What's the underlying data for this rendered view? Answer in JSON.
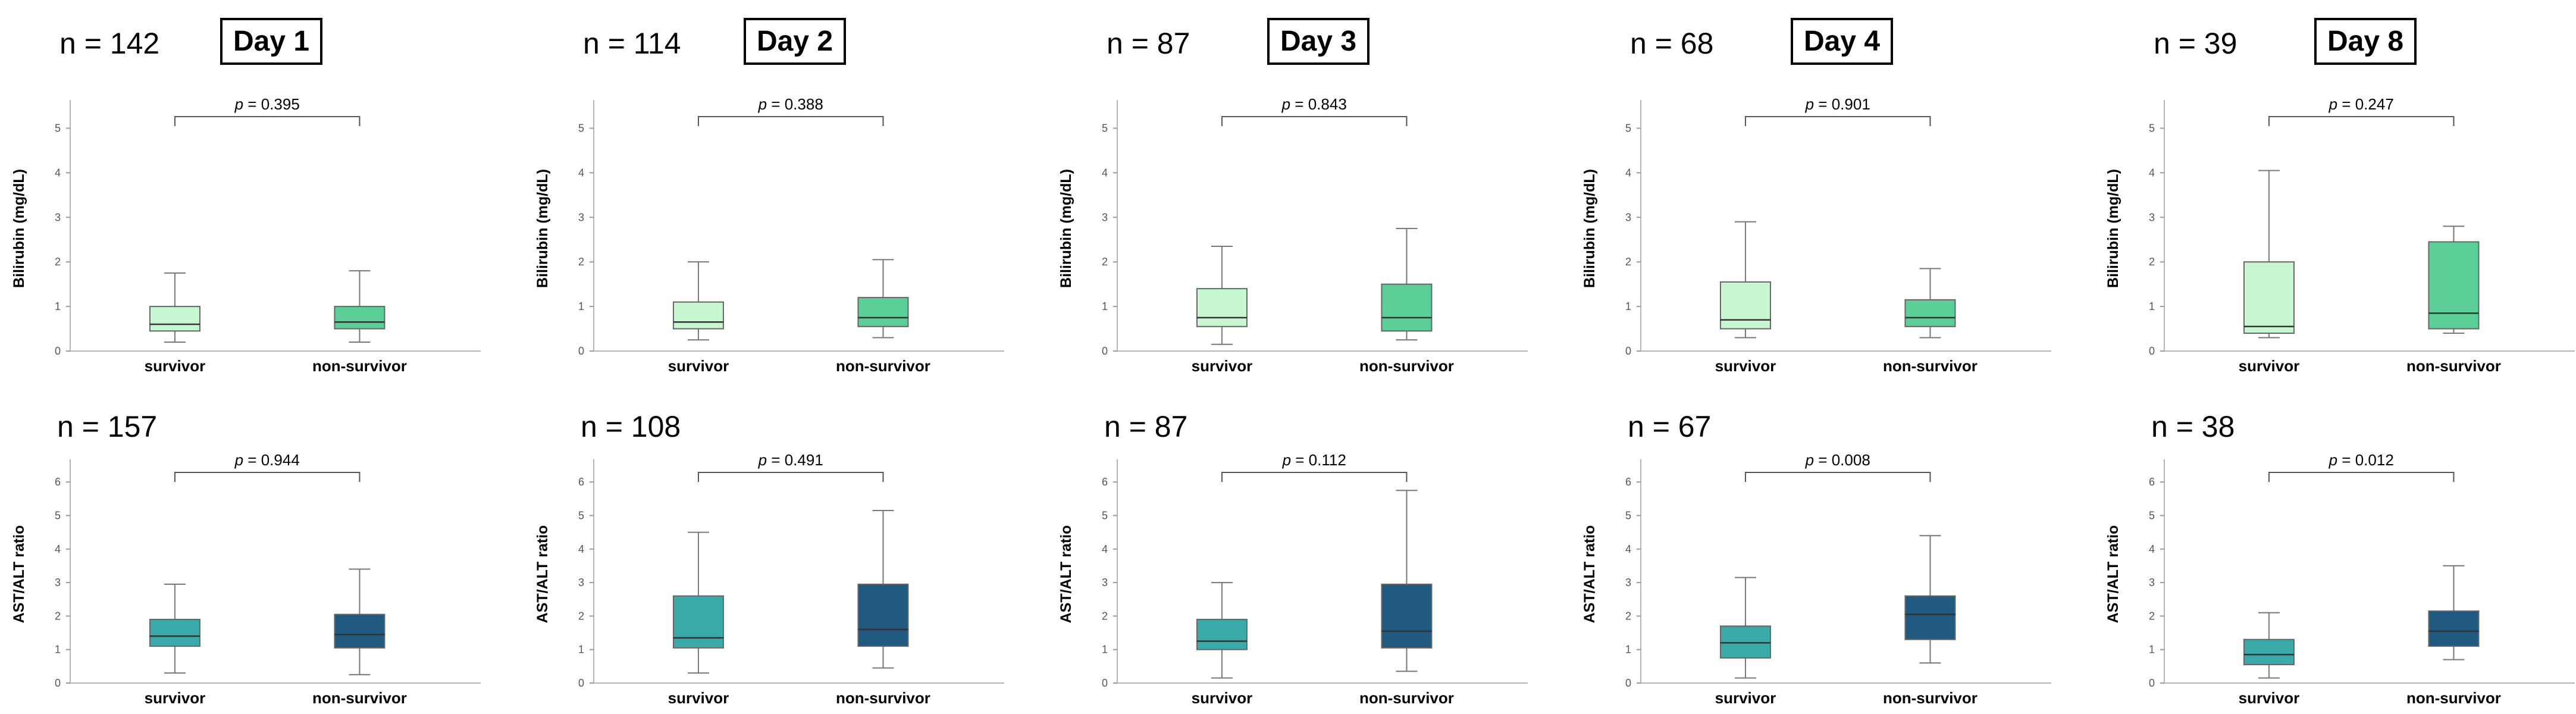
{
  "chart_data": [
    {
      "type": "box",
      "panel": "Bilirubin Day 1",
      "day_label": "Day 1",
      "n_label": "n = 142",
      "ylabel": "Bilirubin (mg/dL)",
      "ylim": [
        0,
        5.5
      ],
      "yticks": [
        0,
        1,
        2,
        3,
        4,
        5
      ],
      "p_label": "p = 0.395",
      "categories": [
        "survivor",
        "non-survivor"
      ],
      "boxes": [
        {
          "min": 0.2,
          "q1": 0.45,
          "median": 0.6,
          "q3": 1.0,
          "max": 1.75,
          "color": "#c6f7d0"
        },
        {
          "min": 0.2,
          "q1": 0.5,
          "median": 0.65,
          "q3": 1.0,
          "max": 1.8,
          "color": "#5ccf98"
        }
      ]
    },
    {
      "type": "box",
      "panel": "Bilirubin Day 2",
      "day_label": "Day 2",
      "n_label": "n = 114",
      "ylabel": "Bilirubin (mg/dL)",
      "ylim": [
        0,
        5.5
      ],
      "yticks": [
        0,
        1,
        2,
        3,
        4,
        5
      ],
      "p_label": "p = 0.388",
      "categories": [
        "survivor",
        "non-survivor"
      ],
      "boxes": [
        {
          "min": 0.25,
          "q1": 0.5,
          "median": 0.65,
          "q3": 1.1,
          "max": 2.0,
          "color": "#c6f7d0"
        },
        {
          "min": 0.3,
          "q1": 0.55,
          "median": 0.75,
          "q3": 1.2,
          "max": 2.05,
          "color": "#5ccf98"
        }
      ]
    },
    {
      "type": "box",
      "panel": "Bilirubin Day 3",
      "day_label": "Day 3",
      "n_label": "n = 87",
      "ylabel": "Bilirubin (mg/dL)",
      "ylim": [
        0,
        5.5
      ],
      "yticks": [
        0,
        1,
        2,
        3,
        4,
        5
      ],
      "p_label": "p = 0.843",
      "categories": [
        "survivor",
        "non-survivor"
      ],
      "boxes": [
        {
          "min": 0.15,
          "q1": 0.55,
          "median": 0.75,
          "q3": 1.4,
          "max": 2.35,
          "color": "#c6f7d0"
        },
        {
          "min": 0.25,
          "q1": 0.45,
          "median": 0.75,
          "q3": 1.5,
          "max": 2.75,
          "color": "#5ccf98"
        }
      ]
    },
    {
      "type": "box",
      "panel": "Bilirubin Day 4",
      "day_label": "Day 4",
      "n_label": "n = 68",
      "ylabel": "Bilirubin (mg/dL)",
      "ylim": [
        0,
        5.5
      ],
      "yticks": [
        0,
        1,
        2,
        3,
        4,
        5
      ],
      "p_label": "p = 0.901",
      "categories": [
        "survivor",
        "non-survivor"
      ],
      "boxes": [
        {
          "min": 0.3,
          "q1": 0.5,
          "median": 0.7,
          "q3": 1.55,
          "max": 2.9,
          "color": "#c6f7d0"
        },
        {
          "min": 0.3,
          "q1": 0.55,
          "median": 0.75,
          "q3": 1.15,
          "max": 1.85,
          "color": "#5ccf98"
        }
      ]
    },
    {
      "type": "box",
      "panel": "Bilirubin Day 8",
      "day_label": "Day 8",
      "n_label": "n = 39",
      "ylabel": "Bilirubin (mg/dL)",
      "ylim": [
        0,
        5.5
      ],
      "yticks": [
        0,
        1,
        2,
        3,
        4,
        5
      ],
      "p_label": "p = 0.247",
      "categories": [
        "survivor",
        "non-survivor"
      ],
      "boxes": [
        {
          "min": 0.3,
          "q1": 0.4,
          "median": 0.55,
          "q3": 2.0,
          "max": 4.05,
          "color": "#c6f7d0"
        },
        {
          "min": 0.4,
          "q1": 0.5,
          "median": 0.85,
          "q3": 2.45,
          "max": 2.8,
          "color": "#5ccf98"
        }
      ]
    },
    {
      "type": "box",
      "panel": "AST/ALT Day 1",
      "n_label": "n = 157",
      "ylabel": "AST/ALT ratio",
      "ylim": [
        0,
        6.5
      ],
      "yticks": [
        0,
        1,
        2,
        3,
        4,
        5,
        6
      ],
      "p_label": "p = 0.944",
      "categories": [
        "survivor",
        "non-survivor"
      ],
      "boxes": [
        {
          "min": 0.3,
          "q1": 1.1,
          "median": 1.4,
          "q3": 1.9,
          "max": 2.95,
          "color": "#3aa9a9"
        },
        {
          "min": 0.25,
          "q1": 1.05,
          "median": 1.45,
          "q3": 2.05,
          "max": 3.4,
          "color": "#215a80"
        }
      ]
    },
    {
      "type": "box",
      "panel": "AST/ALT Day 2",
      "n_label": "n = 108",
      "ylabel": "AST/ALT ratio",
      "ylim": [
        0,
        6.5
      ],
      "yticks": [
        0,
        1,
        2,
        3,
        4,
        5,
        6
      ],
      "p_label": "p = 0.491",
      "categories": [
        "survivor",
        "non-survivor"
      ],
      "boxes": [
        {
          "min": 0.3,
          "q1": 1.05,
          "median": 1.35,
          "q3": 2.6,
          "max": 4.5,
          "color": "#3aa9a9"
        },
        {
          "min": 0.45,
          "q1": 1.1,
          "median": 1.6,
          "q3": 2.95,
          "max": 5.15,
          "color": "#215a80"
        }
      ]
    },
    {
      "type": "box",
      "panel": "AST/ALT Day 3",
      "n_label": "n = 87",
      "ylabel": "AST/ALT ratio",
      "ylim": [
        0,
        6.5
      ],
      "yticks": [
        0,
        1,
        2,
        3,
        4,
        5,
        6
      ],
      "p_label": "p = 0.112",
      "categories": [
        "survivor",
        "non-survivor"
      ],
      "boxes": [
        {
          "min": 0.15,
          "q1": 1.0,
          "median": 1.25,
          "q3": 1.9,
          "max": 3.0,
          "color": "#3aa9a9"
        },
        {
          "min": 0.35,
          "q1": 1.05,
          "median": 1.55,
          "q3": 2.95,
          "max": 5.75,
          "color": "#215a80"
        }
      ]
    },
    {
      "type": "box",
      "panel": "AST/ALT Day 4",
      "n_label": "n = 67",
      "ylabel": "AST/ALT ratio",
      "ylim": [
        0,
        6.5
      ],
      "yticks": [
        0,
        1,
        2,
        3,
        4,
        5,
        6
      ],
      "p_label": "p = 0.008",
      "categories": [
        "survivor",
        "non-survivor"
      ],
      "boxes": [
        {
          "min": 0.15,
          "q1": 0.75,
          "median": 1.2,
          "q3": 1.7,
          "max": 3.15,
          "color": "#3aa9a9"
        },
        {
          "min": 0.6,
          "q1": 1.3,
          "median": 2.05,
          "q3": 2.6,
          "max": 4.4,
          "color": "#215a80"
        }
      ]
    },
    {
      "type": "box",
      "panel": "AST/ALT Day 8",
      "n_label": "n = 38",
      "ylabel": "AST/ALT ratio",
      "ylim": [
        0,
        6.5
      ],
      "yticks": [
        0,
        1,
        2,
        3,
        4,
        5,
        6
      ],
      "p_label": "p = 0.012",
      "categories": [
        "survivor",
        "non-survivor"
      ],
      "boxes": [
        {
          "min": 0.15,
          "q1": 0.55,
          "median": 0.85,
          "q3": 1.3,
          "max": 2.1,
          "color": "#3aa9a9"
        },
        {
          "min": 0.7,
          "q1": 1.1,
          "median": 1.55,
          "q3": 2.15,
          "max": 3.5,
          "color": "#215a80"
        }
      ]
    }
  ]
}
